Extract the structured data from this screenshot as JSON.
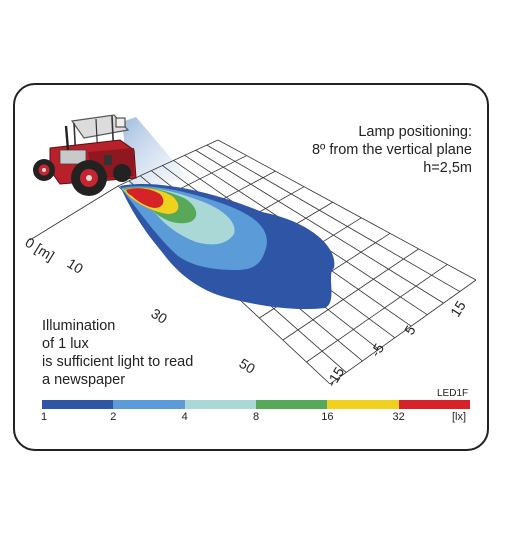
{
  "lamp_note": {
    "line1": "Lamp positioning:",
    "line2": "8º from the vertical plane",
    "line3": "h=2,5m"
  },
  "illumination_note": {
    "line1": "Illumination",
    "line2": "of 1 lux",
    "line3": "is sufficient light to read",
    "line4": "a newspaper"
  },
  "distance_axis": {
    "unit_label": "0 [m]",
    "ticks": [
      "10",
      "30",
      "50"
    ]
  },
  "lateral_axis": {
    "ticks": [
      "15",
      "5",
      "-5",
      "-15"
    ]
  },
  "product_code": "LED1F",
  "legend": {
    "ticks": [
      "1",
      "2",
      "4",
      "8",
      "16",
      "32"
    ],
    "unit": "[lx]",
    "colors": [
      "#2f56a6",
      "#5b9bd8",
      "#a9d8d6",
      "#58a85a",
      "#f0d21e",
      "#d6232a"
    ]
  },
  "zone_colors": {
    "lx1": "#2f56a6",
    "lx2": "#5b9bd8",
    "lx4": "#a9d8d6",
    "lx8": "#58a85a",
    "lx16": "#f0d21e",
    "lx32": "#d6232a"
  }
}
